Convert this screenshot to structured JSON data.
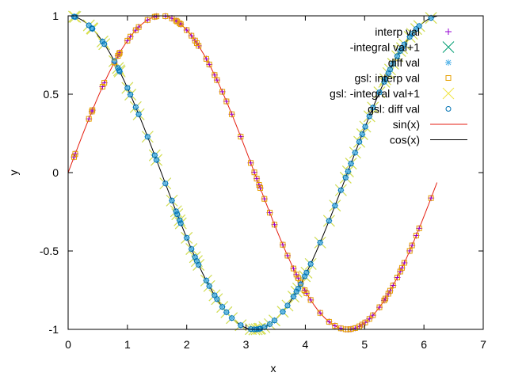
{
  "chart_data": {
    "type": "line",
    "title": "",
    "xlabel": "x",
    "ylabel": "y",
    "xlim": [
      0,
      7
    ],
    "ylim": [
      -1,
      1
    ],
    "xticks": [
      "0",
      "1",
      "2",
      "3",
      "4",
      "5",
      "6",
      "7"
    ],
    "xtick_values": [
      0,
      1,
      2,
      3,
      4,
      5,
      6,
      7
    ],
    "yticks": [
      "-1",
      "-0.5",
      "0",
      "0.5",
      "1"
    ],
    "ytick_values": [
      -1,
      -0.5,
      0,
      0.5,
      1
    ],
    "grid": false,
    "legend_position": "top-right",
    "sample_x": [
      0.1,
      0.12,
      0.35,
      0.4,
      0.41,
      0.58,
      0.61,
      0.78,
      0.84,
      0.86,
      0.87,
      1.0,
      1.05,
      1.14,
      1.19,
      1.34,
      1.46,
      1.49,
      1.64,
      1.75,
      1.82,
      1.84,
      1.88,
      1.9,
      2.0,
      2.08,
      2.14,
      2.17,
      2.2,
      2.33,
      2.38,
      2.47,
      2.51,
      2.6,
      2.67,
      2.76,
      2.91,
      3.08,
      3.14,
      3.18,
      3.22,
      3.24,
      3.31,
      3.4,
      3.48,
      3.62,
      3.7,
      3.8,
      3.85,
      3.88,
      3.92,
      3.99,
      4.02,
      4.09,
      4.25,
      4.4,
      4.5,
      4.6,
      4.68,
      4.72,
      4.77,
      4.84,
      4.91,
      4.96,
      5.01,
      5.08,
      5.14,
      5.25,
      5.33,
      5.35,
      5.4,
      5.43,
      5.48,
      5.55,
      5.6,
      5.63,
      5.67,
      5.76,
      5.8,
      5.87,
      5.92,
      6.12
    ],
    "series": [
      {
        "name": "interp val",
        "marker": "plus",
        "color": "#9400d3",
        "of": "sin"
      },
      {
        "name": "-integral val+1",
        "marker": "x",
        "color": "#009e73",
        "of": "cos"
      },
      {
        "name": "diff val",
        "marker": "star",
        "color": "#56b4e9",
        "of": "cos"
      },
      {
        "name": "gsl: interp val",
        "marker": "square",
        "color": "#e69f00",
        "of": "sin"
      },
      {
        "name": "gsl: -integral val+1",
        "marker": "x",
        "color": "#f0e442",
        "of": "cos"
      },
      {
        "name": "gsl: diff val",
        "marker": "circle",
        "color": "#0072b2",
        "of": "cos"
      },
      {
        "name": "sin(x)",
        "marker": "line",
        "color": "#e51e10",
        "function": "sin",
        "x_range": [
          0,
          6.22
        ]
      },
      {
        "name": "cos(x)",
        "marker": "line",
        "color": "#000000",
        "function": "cos",
        "x_range": [
          0,
          6.22
        ]
      }
    ]
  }
}
